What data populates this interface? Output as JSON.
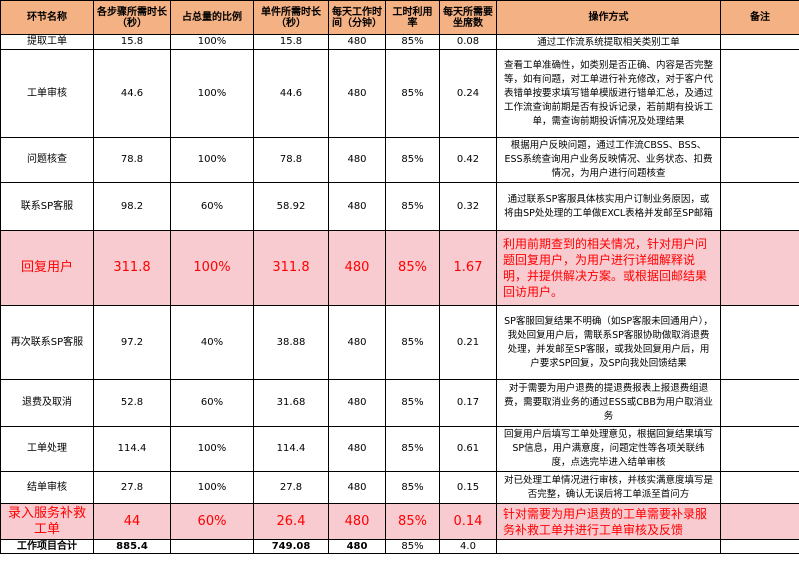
{
  "headers": [
    "环节名称",
    "各步骤所需时长（秒）",
    "占总量的比例",
    "单件所需时长（秒）",
    "每天工作时间（分钟）",
    "工时利用率",
    "每天所需要坐席数",
    "操作方式",
    "备注"
  ],
  "rows": [
    {
      "name": "提取工单",
      "step": "15.8",
      "ratio": "100%",
      "unit": "15.8",
      "minutes": "480",
      "util": "85%",
      "seats": "0.08",
      "method": "通过工作流系统提取相关类别工单",
      "note": ""
    },
    {
      "name": "工单审核",
      "step": "44.6",
      "ratio": "100%",
      "unit": "44.6",
      "minutes": "480",
      "util": "85%",
      "seats": "0.24",
      "method": "查看工单准确性，如类别是否正确、内容是否完整等，如有问题，对工单进行补充修改，对于客户代表错单按要求填写错单模版进行错单汇总，及通过工作流查询前期是否有投诉记录，若前期有投诉工单，需查询前期投诉情况及处理结果",
      "note": ""
    },
    {
      "name": "问题核查",
      "step": "78.8",
      "ratio": "100%",
      "unit": "78.8",
      "minutes": "480",
      "util": "85%",
      "seats": "0.42",
      "method": "根据用户反映问题，通过工作流CBSS、BSS、ESS系统查询用户业务反映情况、业务状态、扣费情况，为用户进行问题核查",
      "note": ""
    },
    {
      "name": "联系SP客服",
      "step": "98.2",
      "ratio": "60%",
      "unit": "58.92",
      "minutes": "480",
      "util": "85%",
      "seats": "0.32",
      "method": "通过联系SP客服具体核实用户订制业务原因，或将由SP处处理的工单做EXCL表格并发邮至SP邮箱",
      "note": ""
    },
    {
      "name": "回复用户",
      "step": "311.8",
      "ratio": "100%",
      "unit": "311.8",
      "minutes": "480",
      "util": "85%",
      "seats": "1.67",
      "method": "利用前期查到的相关情况，针对用户问题回复用户，为用户进行详细解释说明，并提供解决方案。或根据回邮结果回访用户。",
      "note": "",
      "highlight": true
    },
    {
      "name": "再次联系SP客服",
      "step": "97.2",
      "ratio": "40%",
      "unit": "38.88",
      "minutes": "480",
      "util": "85%",
      "seats": "0.21",
      "method": "SP客服回复结果不明确（如SP客服未回通用户），我处回复用户后，需联系SP客服协助做取消退费处理，并发邮至SP客服，或我处回复用户后，用户要求SP回复，及SP向我处回馈结果",
      "note": ""
    },
    {
      "name": "退费及取消",
      "step": "52.8",
      "ratio": "60%",
      "unit": "31.68",
      "minutes": "480",
      "util": "85%",
      "seats": "0.17",
      "method": "对于需要为用户退费的提退费报表上报退费组退费，需要取消业务的通过ESS或CBB为用户取消业务",
      "note": ""
    },
    {
      "name": "工单处理",
      "step": "114.4",
      "ratio": "100%",
      "unit": "114.4",
      "minutes": "480",
      "util": "85%",
      "seats": "0.61",
      "method": "回复用户后填写工单处理意见，根据回复结果填写SP信息，用户满意度，问题定性等各项关联纬度，点选完毕进入结单审核",
      "note": ""
    },
    {
      "name": "结单审核",
      "step": "27.8",
      "ratio": "100%",
      "unit": "27.8",
      "minutes": "480",
      "util": "85%",
      "seats": "0.15",
      "method": "对已处理工单情况进行审核，并核实满意度填写是否完整，确认无误后将工单派至首问方",
      "note": ""
    },
    {
      "name": "录入服务补救工单",
      "step": "44",
      "ratio": "60%",
      "unit": "26.4",
      "minutes": "480",
      "util": "85%",
      "seats": "0.14",
      "method": "针对需要为用户退费的工单需要补录服务补救工单并进行工单审核及反馈",
      "note": "",
      "highlight": true
    }
  ],
  "total": {
    "name": "工作项目合计",
    "step": "885.4",
    "ratio": "",
    "unit": "749.08",
    "minutes": "480",
    "util": "85%",
    "seats": "4.0",
    "method": "",
    "note": ""
  }
}
